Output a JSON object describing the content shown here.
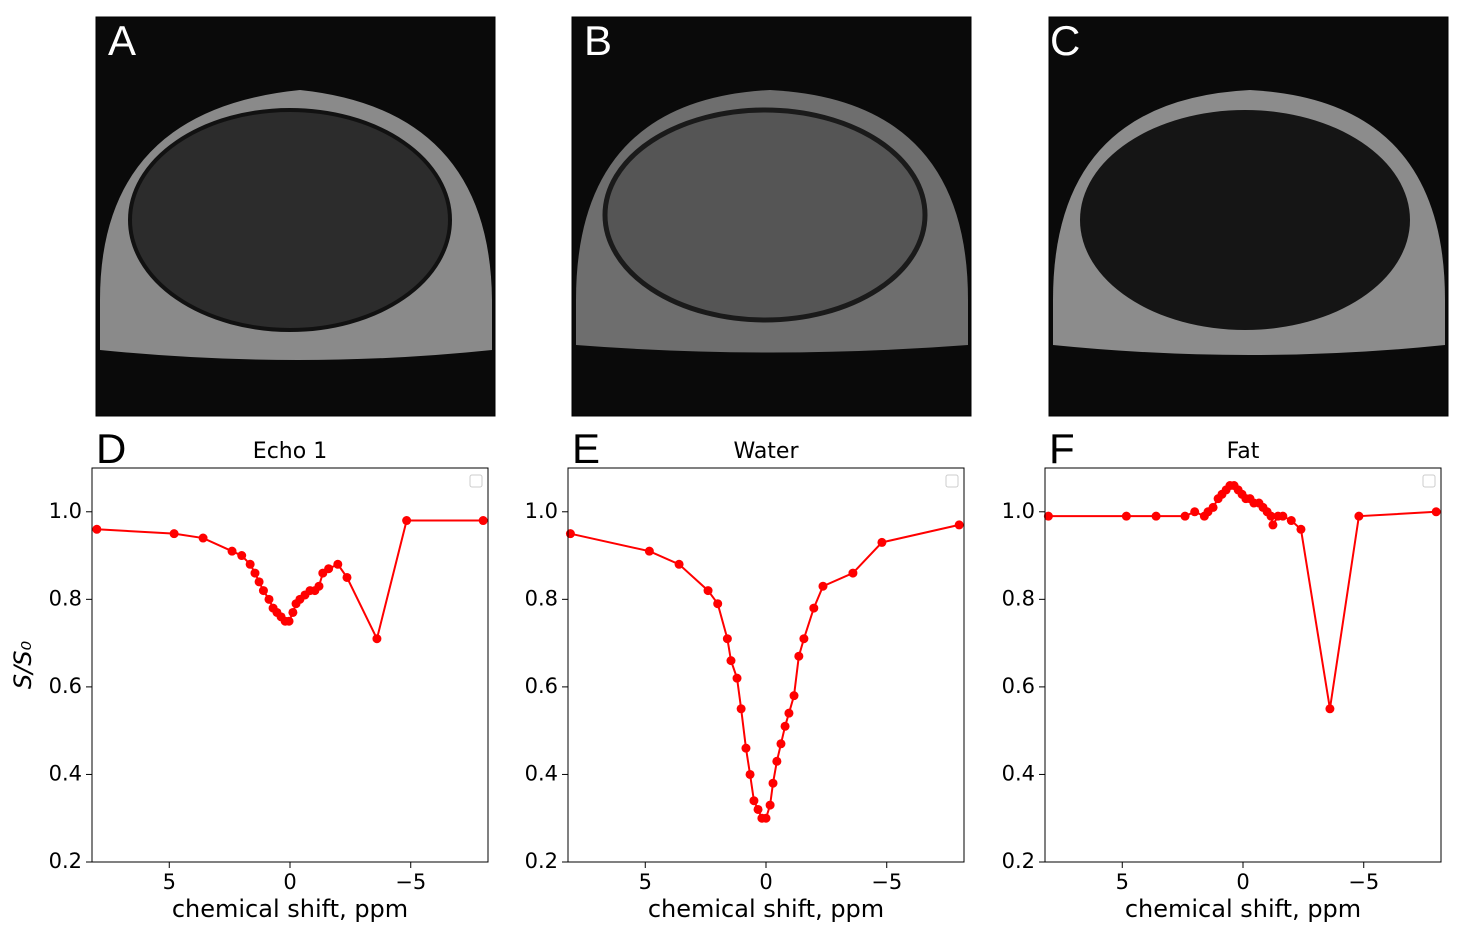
{
  "images": [
    {
      "label": "A"
    },
    {
      "label": "B"
    },
    {
      "label": "C"
    }
  ],
  "chart_data": [
    {
      "type": "line",
      "panel": "D",
      "title": "Echo 1",
      "xlabel": "chemical shift, ppm",
      "ylabel": "S/S₀",
      "xlim": [
        8.2,
        -8.2
      ],
      "ylim": [
        0.2,
        1.1
      ],
      "xticks": [
        5,
        0,
        {
          "value": -5,
          "label": "−5"
        }
      ],
      "yticks": [
        0.2,
        0.4,
        0.6,
        0.8,
        {
          "value": 1,
          "label": "1.0"
        }
      ],
      "legend": "upper right",
      "grid": false,
      "series": [
        {
          "color": "#ff0000",
          "x": [
            8.0,
            4.8,
            3.6,
            2.4,
            2.0,
            1.65,
            1.45,
            1.28,
            1.1,
            0.87,
            0.7,
            0.54,
            0.37,
            0.2,
            0.04,
            -0.12,
            -0.25,
            -0.41,
            -0.62,
            -0.83,
            -1.03,
            -1.2,
            -1.36,
            -1.6,
            -1.98,
            -2.36,
            -3.6,
            -4.83,
            -8.0
          ],
          "values": [
            0.96,
            0.95,
            0.94,
            0.91,
            0.9,
            0.88,
            0.86,
            0.84,
            0.82,
            0.8,
            0.78,
            0.77,
            0.76,
            0.75,
            0.75,
            0.77,
            0.79,
            0.8,
            0.81,
            0.82,
            0.82,
            0.83,
            0.86,
            0.87,
            0.88,
            0.85,
            0.71,
            0.98,
            0.98
          ]
        }
      ]
    },
    {
      "type": "line",
      "panel": "E",
      "title": "Water",
      "xlabel": "chemical shift, ppm",
      "xlim": [
        8.2,
        -8.2
      ],
      "ylim": [
        0.2,
        1.1
      ],
      "xticks": [
        5,
        0,
        {
          "value": -5,
          "label": "−5"
        }
      ],
      "yticks": [
        0.2,
        0.4,
        0.6,
        0.8,
        {
          "value": 1,
          "label": "1.0"
        }
      ],
      "legend": "upper right",
      "grid": false,
      "series": [
        {
          "color": "#ff0000",
          "x": [
            8.1,
            4.83,
            3.6,
            2.4,
            2.0,
            1.6,
            1.45,
            1.2,
            1.03,
            0.83,
            0.66,
            0.5,
            0.33,
            0.17,
            0.0,
            -0.17,
            -0.29,
            -0.45,
            -0.62,
            -0.79,
            -0.95,
            -1.16,
            -1.36,
            -1.57,
            -1.98,
            -2.36,
            -3.6,
            -4.8,
            -8.0
          ],
          "values": [
            0.95,
            0.91,
            0.88,
            0.82,
            0.79,
            0.71,
            0.66,
            0.62,
            0.55,
            0.46,
            0.4,
            0.34,
            0.32,
            0.3,
            0.3,
            0.33,
            0.38,
            0.43,
            0.47,
            0.51,
            0.54,
            0.58,
            0.67,
            0.71,
            0.78,
            0.83,
            0.86,
            0.93,
            0.97
          ]
        }
      ]
    },
    {
      "type": "line",
      "panel": "F",
      "title": "Fat",
      "xlabel": "chemical shift, ppm",
      "xlim": [
        8.2,
        -8.2
      ],
      "ylim": [
        0.2,
        1.1
      ],
      "xticks": [
        5,
        0,
        {
          "value": -5,
          "label": "−5"
        }
      ],
      "yticks": [
        0.2,
        0.4,
        0.6,
        0.8,
        {
          "value": 1,
          "label": "1.0"
        }
      ],
      "legend": "upper right",
      "grid": false,
      "series": [
        {
          "color": "#ff0000",
          "x": [
            8.06,
            4.83,
            3.6,
            2.4,
            2.0,
            1.6,
            1.45,
            1.24,
            1.03,
            0.87,
            0.7,
            0.54,
            0.37,
            0.2,
            0.04,
            -0.12,
            -0.29,
            -0.45,
            -0.66,
            -0.83,
            -1.0,
            -1.16,
            -1.24,
            -1.45,
            -1.65,
            -2.0,
            -2.4,
            -3.6,
            -4.8,
            -8.0
          ],
          "values": [
            0.99,
            0.99,
            0.99,
            0.99,
            1.0,
            0.99,
            1.0,
            1.01,
            1.03,
            1.04,
            1.05,
            1.06,
            1.06,
            1.05,
            1.04,
            1.03,
            1.03,
            1.02,
            1.02,
            1.01,
            1.0,
            0.99,
            0.97,
            0.99,
            0.99,
            0.98,
            0.96,
            0.55,
            0.99,
            1.0
          ]
        }
      ]
    }
  ]
}
